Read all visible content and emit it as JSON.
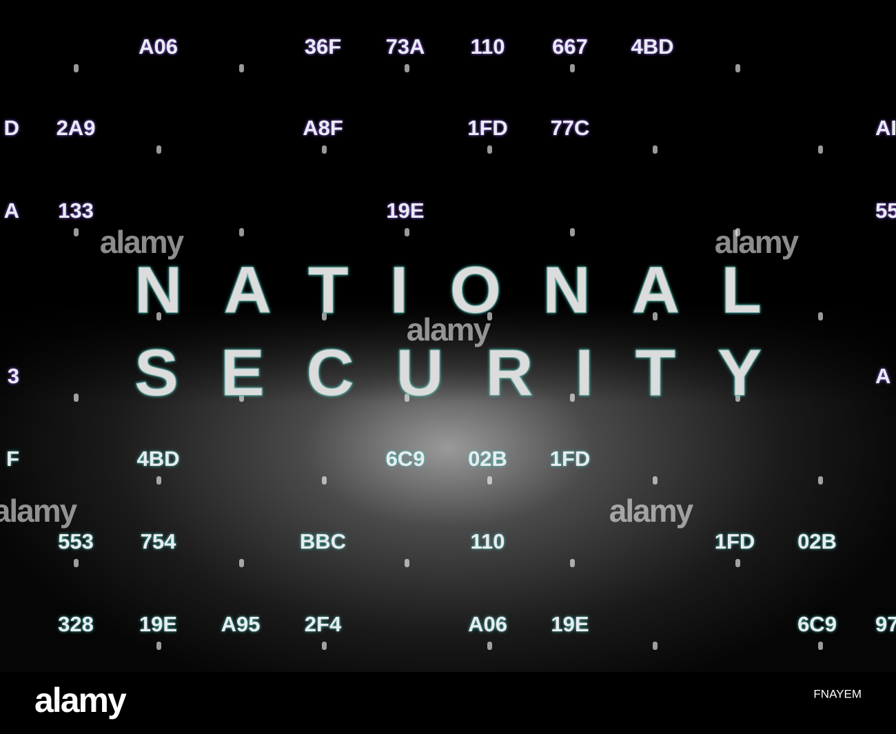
{
  "headline": [
    "NATIONAL",
    "SECURITY"
  ],
  "code_grid": [
    [
      "",
      null,
      "A06",
      null,
      "36F",
      "73A",
      "110",
      "667",
      "4BD",
      null,
      null,
      null
    ],
    [
      "D",
      "2A9",
      null,
      null,
      "A8F",
      null,
      "1FD",
      "77C",
      null,
      null,
      null,
      "AI"
    ],
    [
      "A",
      "133",
      null,
      null,
      null,
      "19E",
      null,
      null,
      null,
      null,
      null,
      "55"
    ],
    [
      "3",
      null,
      null,
      null,
      null,
      null,
      null,
      null,
      null,
      null,
      null,
      "A"
    ],
    [
      "F",
      null,
      "4BD",
      null,
      null,
      "6C9",
      "02B",
      "1FD",
      null,
      null,
      null,
      null
    ],
    [
      null,
      "553",
      "754",
      null,
      "BBC",
      null,
      "110",
      null,
      null,
      "1FD",
      "02B",
      null
    ],
    [
      null,
      "328",
      "19E",
      "A95",
      "2F4",
      null,
      "A06",
      "19E",
      null,
      null,
      "6C9",
      "97"
    ]
  ],
  "watermarks": [
    "alamy",
    "alamy",
    "alamy",
    "alamy",
    "alamy"
  ],
  "footer": {
    "logo": "alamy",
    "image_id": "FNAYEM"
  }
}
